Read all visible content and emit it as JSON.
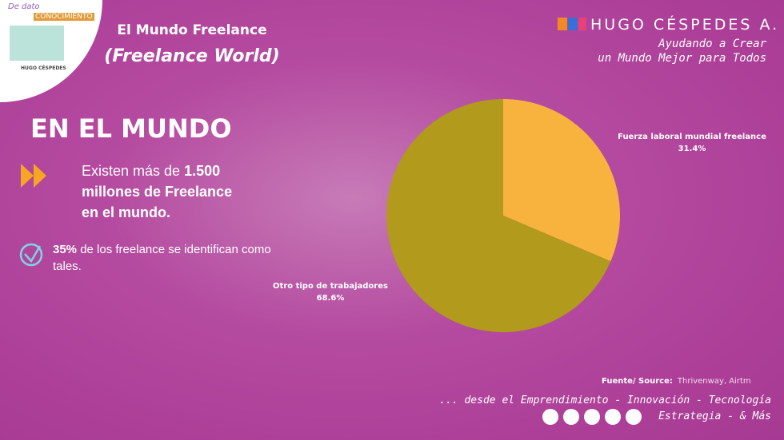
{
  "logo": {
    "line1": "De dato",
    "line2": "CONOCIMIENTO",
    "line3": "HUGO CÉSPEDES"
  },
  "header": {
    "title": "El Mundo Freelance",
    "subtitle": "(Freelance World)",
    "brand": "HUGO CÉSPEDES A.",
    "tagline": [
      "Ayudando a Crear",
      "un Mundo Mejor para Todos"
    ]
  },
  "body": {
    "heading": "EN EL MUNDO",
    "bullet1": {
      "text": "Existen más de ",
      "bold": "1.500 millones de Freelance en el mundo."
    },
    "bullet2": {
      "bold": "35%",
      "text": " de los freelance se identifican como tales."
    }
  },
  "chart_data": {
    "type": "pie",
    "categories": [
      "Fuerza laboral mundial freelance",
      "Otro tipo de trabajadores"
    ],
    "values": [
      31.4,
      68.6
    ],
    "value_labels": [
      "31.4%",
      "68.6%"
    ],
    "colors": [
      "#f8b23e",
      "#b19a1c"
    ]
  },
  "footer": {
    "source_label": "Fuente/ Source:",
    "source": "Thrivenway, Airtm",
    "line1": "... desde el Emprendimiento - Innovación - Tecnología",
    "line2": "Estrategia - & Más"
  }
}
